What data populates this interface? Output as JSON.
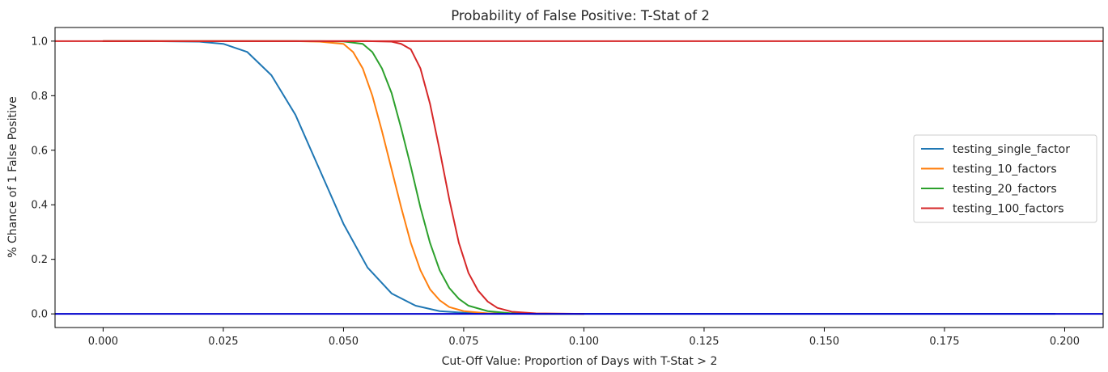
{
  "chart_data": {
    "type": "line",
    "title": "Probability of False Positive: T-Stat of 2",
    "xlabel": "Cut-Off Value: Proportion of Days with T-Stat > 2",
    "ylabel": "% Chance of 1 False Positive",
    "xlim": [
      -0.01,
      0.208
    ],
    "ylim": [
      -0.05,
      1.05
    ],
    "xticks": [
      0.0,
      0.025,
      0.05,
      0.075,
      0.1,
      0.125,
      0.15,
      0.175,
      0.2
    ],
    "xtick_labels": [
      "0.000",
      "0.025",
      "0.050",
      "0.075",
      "0.100",
      "0.125",
      "0.150",
      "0.175",
      "0.200"
    ],
    "yticks": [
      0.0,
      0.2,
      0.4,
      0.6,
      0.8,
      1.0
    ],
    "ytick_labels": [
      "0.0",
      "0.2",
      "0.4",
      "0.6",
      "0.8",
      "1.0"
    ],
    "grid": false,
    "legend": "center-right",
    "hlines": [
      {
        "y": 1.0,
        "color": "#d62728"
      },
      {
        "y": 0.0,
        "color": "#0000cc"
      }
    ],
    "series": [
      {
        "name": "testing_single_factor",
        "color": "#1f77b4",
        "x": [
          0.0,
          0.01,
          0.02,
          0.025,
          0.03,
          0.035,
          0.04,
          0.045,
          0.05,
          0.055,
          0.06,
          0.065,
          0.07,
          0.075,
          0.08,
          0.09,
          0.1,
          0.15,
          0.198
        ],
        "y": [
          1.0,
          1.0,
          0.998,
          0.99,
          0.96,
          0.875,
          0.73,
          0.53,
          0.33,
          0.17,
          0.075,
          0.03,
          0.01,
          0.004,
          0.002,
          0.0,
          0.0,
          0.0,
          0.0
        ]
      },
      {
        "name": "testing_10_factors",
        "color": "#ff7f0e",
        "x": [
          0.0,
          0.04,
          0.045,
          0.05,
          0.052,
          0.054,
          0.056,
          0.058,
          0.06,
          0.062,
          0.064,
          0.066,
          0.068,
          0.07,
          0.072,
          0.075,
          0.08,
          0.09,
          0.1
        ],
        "y": [
          1.0,
          1.0,
          0.998,
          0.99,
          0.96,
          0.9,
          0.8,
          0.67,
          0.53,
          0.39,
          0.26,
          0.16,
          0.09,
          0.05,
          0.025,
          0.01,
          0.002,
          0.0,
          0.0
        ]
      },
      {
        "name": "testing_20_factors",
        "color": "#2ca02c",
        "x": [
          0.0,
          0.045,
          0.05,
          0.054,
          0.056,
          0.058,
          0.06,
          0.062,
          0.064,
          0.066,
          0.068,
          0.07,
          0.072,
          0.074,
          0.076,
          0.08,
          0.085,
          0.09,
          0.1
        ],
        "y": [
          1.0,
          1.0,
          0.999,
          0.99,
          0.96,
          0.9,
          0.81,
          0.68,
          0.54,
          0.39,
          0.26,
          0.16,
          0.095,
          0.055,
          0.03,
          0.01,
          0.002,
          0.0,
          0.0
        ]
      },
      {
        "name": "testing_100_factors",
        "color": "#d62728",
        "x": [
          0.0,
          0.055,
          0.06,
          0.062,
          0.064,
          0.066,
          0.068,
          0.07,
          0.072,
          0.074,
          0.076,
          0.078,
          0.08,
          0.082,
          0.085,
          0.09,
          0.1
        ],
        "y": [
          1.0,
          1.0,
          0.998,
          0.99,
          0.97,
          0.9,
          0.77,
          0.6,
          0.42,
          0.26,
          0.15,
          0.085,
          0.045,
          0.022,
          0.008,
          0.002,
          0.0
        ]
      }
    ]
  }
}
